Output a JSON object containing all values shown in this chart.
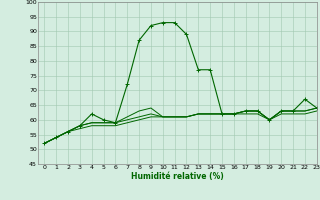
{
  "title": "",
  "xlabel": "Humidité relative (%)",
  "ylabel": "",
  "background_color": "#d4ede0",
  "grid_color": "#a0c8b0",
  "line_color": "#006600",
  "xlim": [
    -0.5,
    23
  ],
  "ylim": [
    45,
    100
  ],
  "yticks": [
    45,
    50,
    55,
    60,
    65,
    70,
    75,
    80,
    85,
    90,
    95,
    100
  ],
  "xticks": [
    0,
    1,
    2,
    3,
    4,
    5,
    6,
    7,
    8,
    9,
    10,
    11,
    12,
    13,
    14,
    15,
    16,
    17,
    18,
    19,
    20,
    21,
    22,
    23
  ],
  "series": [
    [
      52,
      54,
      56,
      58,
      62,
      60,
      59,
      72,
      87,
      92,
      93,
      93,
      89,
      77,
      77,
      62,
      62,
      63,
      63,
      60,
      63,
      63,
      67,
      64
    ],
    [
      52,
      54,
      56,
      58,
      59,
      59,
      59,
      61,
      63,
      64,
      61,
      61,
      61,
      62,
      62,
      62,
      62,
      63,
      63,
      60,
      63,
      63,
      63,
      64
    ],
    [
      52,
      54,
      56,
      58,
      59,
      59,
      59,
      60,
      61,
      62,
      61,
      61,
      61,
      62,
      62,
      62,
      62,
      63,
      63,
      60,
      63,
      63,
      63,
      64
    ],
    [
      52,
      54,
      56,
      57,
      58,
      58,
      58,
      59,
      60,
      61,
      61,
      61,
      61,
      62,
      62,
      62,
      62,
      62,
      62,
      60,
      62,
      62,
      62,
      63
    ]
  ]
}
